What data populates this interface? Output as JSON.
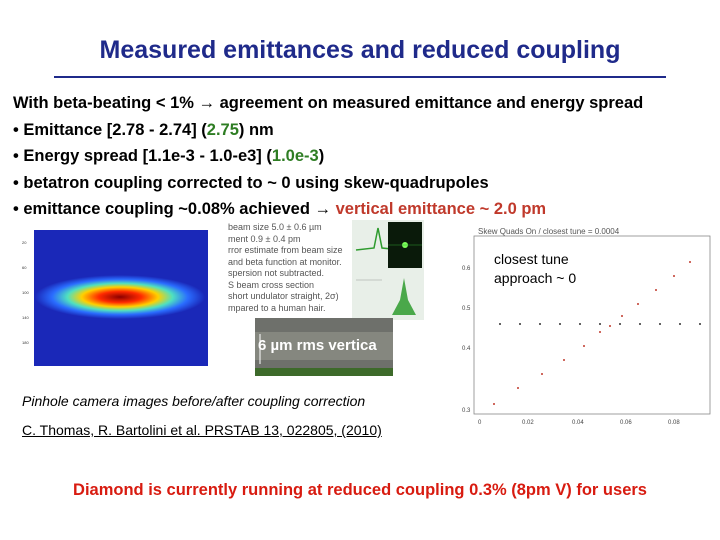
{
  "title": "Measured emittances and reduced coupling",
  "bullets": {
    "intro": "With beta-beating < 1% → agreement on measured emittance and energy spread",
    "emittance": {
      "prefix": "• Emittance [2.78 - 2.74] (",
      "value": "2.75",
      "suffix": ") nm"
    },
    "energy": {
      "prefix": "• Energy spread [1.1e-3 - 1.0-e3] (",
      "value": "1.0e-3",
      "suffix": ")"
    },
    "coupling": "• betatron coupling corrected to ~ 0 using skew-quadrupoles",
    "emittance_coupling": {
      "prefix": "• emittance coupling ~0.08% achieved → ",
      "highlight": "vertical emittance ~ 2.0 pm"
    }
  },
  "figure_notes": [
    "beam size  5.0 ± 0.6 µm",
    "ment  0.9 ± 0.4 pm",
    "rror estimate from beam size",
    "and beta function at monitor.",
    "spersion not subtracted.",
    "S beam cross section",
    "short undulator straight, 2σ)",
    "mpared to a human hair."
  ],
  "streak_label": "6 µm rms vertica",
  "scan_plot": {
    "title": "Skew Quads On / closest tune = 0.0004",
    "y_ticks": [
      "0.6",
      "0.5",
      "0.4",
      "0.3"
    ],
    "x_ticks": [
      "0",
      "0.02",
      "0.04",
      "0.06",
      "0.08"
    ]
  },
  "annotation": "closest tune approach ~ 0",
  "caption": "Pinhole camera images before/after coupling correction",
  "reference": "C. Thomas, R. Bartolini et al. PRSTAB 13, 022805, (2010)",
  "footer": "Diamond is currently running at reduced coupling 0.3% (8pm V) for users",
  "colors": {
    "title": "#1f2a8a",
    "green": "#2e7d23",
    "red": "#c0392b",
    "footer": "#d81b10"
  }
}
